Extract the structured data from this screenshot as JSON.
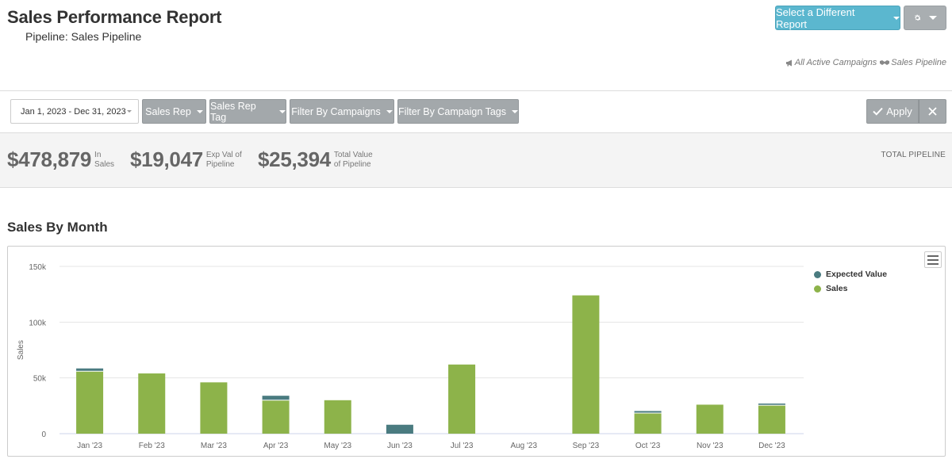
{
  "header": {
    "title": "Sales Performance Report",
    "subtitle": "Pipeline: Sales Pipeline",
    "select_report_label": "Select a Different Report",
    "gear_icon": "gear-icon",
    "breadcrumb_campaigns": "All Active Campaigns",
    "breadcrumb_pipeline": "Sales Pipeline"
  },
  "filters": {
    "date_range": "Jan 1, 2023 - Dec 31, 2023",
    "buttons": [
      "Sales Rep",
      "Sales Rep Tag",
      "Filter By Campaigns",
      "Filter By Campaign Tags"
    ],
    "apply_label": "Apply"
  },
  "stats": {
    "sales_value": "$478,879",
    "sales_label_1": "In",
    "sales_label_2": "Sales",
    "exp_value": "$19,047",
    "exp_label_1": "Exp Val of",
    "exp_label_2": "Pipeline",
    "total_value": "$25,394",
    "total_label_1": "Total Value",
    "total_label_2": "of Pipeline",
    "total_pipeline": "TOTAL PIPELINE"
  },
  "section": {
    "title": "Sales By Month"
  },
  "colors": {
    "accent": "#5bb7cf",
    "sales": "#8db34a",
    "expected": "#4a7b80"
  },
  "chart_data": {
    "type": "bar",
    "stacked": true,
    "categories": [
      "Jan '23",
      "Feb '23",
      "Mar '23",
      "Apr '23",
      "May '23",
      "Jun '23",
      "Jul '23",
      "Aug '23",
      "Sep '23",
      "Oct '23",
      "Nov '23",
      "Dec '23"
    ],
    "series": [
      {
        "name": "Expected Value",
        "values": [
          2500,
          0,
          0,
          4000,
          0,
          8000,
          0,
          0,
          0,
          1800,
          0,
          1500
        ]
      },
      {
        "name": "Sales",
        "values": [
          56000,
          54000,
          46000,
          30000,
          30000,
          0,
          62000,
          0,
          124000,
          18500,
          26000,
          25500
        ]
      }
    ],
    "ylabel": "Sales",
    "xlabel": "",
    "ylim": [
      0,
      150000
    ],
    "yticks": [
      "0",
      "50k",
      "100k",
      "150k"
    ],
    "ytick_values": [
      0,
      50000,
      100000,
      150000
    ],
    "grid": true,
    "legend": "top-right"
  }
}
